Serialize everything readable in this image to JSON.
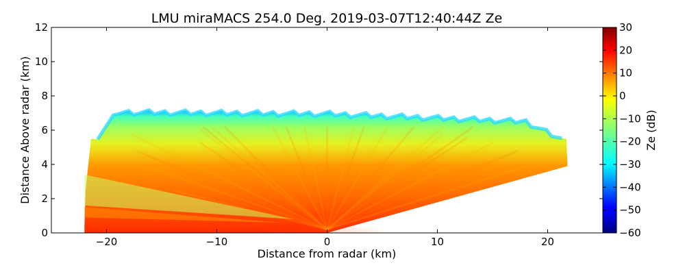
{
  "chart_data": {
    "type": "heatmap",
    "title": "LMU miraMACS 254.0 Deg. 2019-03-07T12:40:44Z  Ze",
    "xlabel": "Distance from radar (km)",
    "ylabel": "Distance Above radar  (km)",
    "xlim": [
      -25,
      25
    ],
    "ylim": [
      0,
      12
    ],
    "xticks": [
      -20,
      -10,
      0,
      10,
      20
    ],
    "xtick_labels": [
      "−20",
      "−10",
      "0",
      "10",
      "20"
    ],
    "yticks": [
      0,
      2,
      4,
      6,
      8,
      10,
      12
    ],
    "ytick_labels": [
      "0",
      "2",
      "4",
      "6",
      "8",
      "10",
      "12"
    ],
    "grid": false,
    "colorbar": {
      "label": "Ze (dB)",
      "range": [
        -60,
        30
      ],
      "ticks": [
        -60,
        -50,
        -40,
        -30,
        -20,
        -10,
        0,
        10,
        20,
        30
      ],
      "tick_labels": [
        "−60",
        "−50",
        "−40",
        "−30",
        "−20",
        "−10",
        "0",
        "10",
        "20",
        "30"
      ],
      "colormap": "jet"
    },
    "echo_region": {
      "description_units": "km",
      "cloud_top_km_left": 7.0,
      "cloud_top_km_center": 6.9,
      "cloud_top_km_right": 6.4,
      "left_edge_km": -22,
      "right_edge_km": 21.7,
      "scan_floor_right": [
        [
          0,
          0
        ],
        [
          21.8,
          3.9
        ]
      ],
      "core_ze_dB": 20,
      "top_ze_dB": -28
    }
  }
}
